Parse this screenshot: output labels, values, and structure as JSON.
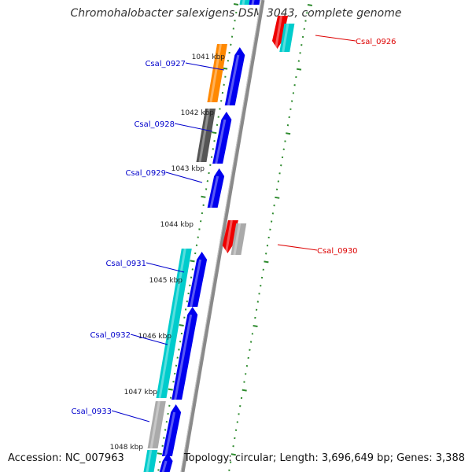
{
  "title": "Chromohalobacter salexigens DSM 3043, complete genome",
  "accession": "Accession: NC_007963",
  "topology": "Topology: circular; Length: 3,696,649 bp; Genes: 3,388",
  "colors": {
    "backbone": "#8a8a8a",
    "tick": "#2e8b2e",
    "forward_label": "#0000cc",
    "reverse_label": "#dd0000",
    "blue": "#0000ee",
    "cyan": "#00cccc",
    "red": "#ee0000",
    "orange": "#ff8800",
    "darkgray": "#555555",
    "gray": "#aaaaaa"
  },
  "kbp_marks": [
    "1041 kbp",
    "1042 kbp",
    "1043 kbp",
    "1044 kbp",
    "1045 kbp",
    "1046 kbp",
    "1047 kbp",
    "1048 kbp"
  ],
  "gene_labels": [
    {
      "name": "Csal_0926",
      "strand": "reverse"
    },
    {
      "name": "Csal_0927",
      "strand": "forward"
    },
    {
      "name": "Csal_0928",
      "strand": "forward"
    },
    {
      "name": "Csal_0929",
      "strand": "forward"
    },
    {
      "name": "Csal_0930",
      "strand": "reverse"
    },
    {
      "name": "Csal_0931",
      "strand": "forward"
    },
    {
      "name": "Csal_0932",
      "strand": "forward"
    },
    {
      "name": "Csal_0933",
      "strand": "forward"
    }
  ]
}
